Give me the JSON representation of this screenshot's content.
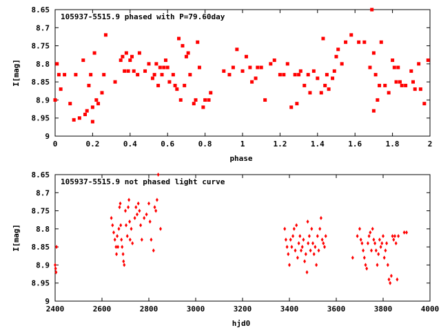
{
  "chart_data": [
    {
      "type": "scatter",
      "title": "105937-5515.9 phased with P=79.60day",
      "xlabel": "phase",
      "ylabel": "I[mag]",
      "xlim": [
        0,
        2
      ],
      "ylim": [
        8.65,
        9
      ],
      "y_inverted": true,
      "x_ticks": [
        "0",
        "0.2",
        "0.4",
        "0.6",
        "0.8",
        "1",
        "1.2",
        "1.4",
        "1.6",
        "1.8",
        "2"
      ],
      "y_ticks": [
        "8.65",
        "8.7",
        "8.75",
        "8.8",
        "8.85",
        "8.9",
        "8.95",
        "9"
      ],
      "marker_color": "#ff0000",
      "marker": "filled-square",
      "points": [
        [
          0.0,
          8.9
        ],
        [
          0.01,
          8.8
        ],
        [
          0.02,
          8.83
        ],
        [
          0.03,
          8.87
        ],
        [
          0.05,
          8.83
        ],
        [
          0.08,
          8.91
        ],
        [
          0.1,
          8.955
        ],
        [
          0.11,
          8.83
        ],
        [
          0.13,
          8.95
        ],
        [
          0.15,
          8.79
        ],
        [
          0.16,
          8.94
        ],
        [
          0.17,
          8.93
        ],
        [
          0.18,
          8.86
        ],
        [
          0.19,
          8.83
        ],
        [
          0.2,
          8.92
        ],
        [
          0.2,
          8.96
        ],
        [
          0.21,
          8.77
        ],
        [
          0.22,
          8.9
        ],
        [
          0.23,
          8.91
        ],
        [
          0.25,
          8.88
        ],
        [
          0.26,
          8.83
        ],
        [
          0.27,
          8.72
        ],
        [
          0.32,
          8.85
        ],
        [
          0.35,
          8.79
        ],
        [
          0.36,
          8.78
        ],
        [
          0.37,
          8.82
        ],
        [
          0.38,
          8.77
        ],
        [
          0.39,
          8.82
        ],
        [
          0.4,
          8.79
        ],
        [
          0.41,
          8.78
        ],
        [
          0.42,
          8.82
        ],
        [
          0.44,
          8.83
        ],
        [
          0.45,
          8.77
        ],
        [
          0.48,
          8.82
        ],
        [
          0.5,
          8.8
        ],
        [
          0.52,
          8.84
        ],
        [
          0.53,
          8.83
        ],
        [
          0.54,
          8.8
        ],
        [
          0.55,
          8.86
        ],
        [
          0.56,
          8.81
        ],
        [
          0.57,
          8.83
        ],
        [
          0.58,
          8.81
        ],
        [
          0.59,
          8.79
        ],
        [
          0.6,
          8.81
        ],
        [
          0.61,
          8.85
        ],
        [
          0.63,
          8.83
        ],
        [
          0.64,
          8.86
        ],
        [
          0.65,
          8.87
        ],
        [
          0.66,
          8.73
        ],
        [
          0.67,
          8.9
        ],
        [
          0.68,
          8.75
        ],
        [
          0.69,
          8.86
        ],
        [
          0.7,
          8.78
        ],
        [
          0.71,
          8.77
        ],
        [
          0.72,
          8.83
        ],
        [
          0.74,
          8.91
        ],
        [
          0.75,
          8.9
        ],
        [
          0.76,
          8.74
        ],
        [
          0.77,
          8.81
        ],
        [
          0.79,
          8.92
        ],
        [
          0.8,
          8.9
        ],
        [
          0.82,
          8.9
        ],
        [
          0.83,
          8.88
        ],
        [
          0.9,
          8.82
        ],
        [
          0.93,
          8.83
        ],
        [
          0.95,
          8.81
        ],
        [
          0.97,
          8.76
        ],
        [
          1.0,
          8.82
        ],
        [
          1.02,
          8.78
        ],
        [
          1.04,
          8.81
        ],
        [
          1.05,
          8.85
        ],
        [
          1.07,
          8.84
        ],
        [
          1.08,
          8.81
        ],
        [
          1.1,
          8.81
        ],
        [
          1.12,
          8.9
        ],
        [
          1.15,
          8.8
        ],
        [
          1.17,
          8.79
        ],
        [
          1.2,
          8.83
        ],
        [
          1.22,
          8.83
        ],
        [
          1.24,
          8.8
        ],
        [
          1.26,
          8.92
        ],
        [
          1.28,
          8.83
        ],
        [
          1.29,
          8.91
        ],
        [
          1.3,
          8.83
        ],
        [
          1.31,
          8.82
        ],
        [
          1.33,
          8.86
        ],
        [
          1.35,
          8.83
        ],
        [
          1.36,
          8.88
        ],
        [
          1.38,
          8.82
        ],
        [
          1.4,
          8.84
        ],
        [
          1.42,
          8.88
        ],
        [
          1.43,
          8.73
        ],
        [
          1.44,
          8.86
        ],
        [
          1.45,
          8.83
        ],
        [
          1.46,
          8.87
        ],
        [
          1.48,
          8.84
        ],
        [
          1.49,
          8.82
        ],
        [
          1.5,
          8.78
        ],
        [
          1.51,
          8.76
        ],
        [
          1.53,
          8.8
        ],
        [
          1.55,
          8.74
        ],
        [
          1.58,
          8.72
        ],
        [
          1.62,
          8.74
        ],
        [
          1.65,
          8.74
        ],
        [
          1.68,
          8.81
        ],
        [
          1.69,
          8.65
        ],
        [
          1.7,
          8.77
        ],
        [
          1.7,
          8.93
        ],
        [
          1.71,
          8.83
        ],
        [
          1.72,
          8.9
        ],
        [
          1.73,
          8.86
        ],
        [
          1.74,
          8.74
        ],
        [
          1.76,
          8.86
        ],
        [
          1.78,
          8.88
        ],
        [
          1.8,
          8.79
        ],
        [
          1.81,
          8.81
        ],
        [
          1.82,
          8.85
        ],
        [
          1.83,
          8.81
        ],
        [
          1.84,
          8.85
        ],
        [
          1.85,
          8.86
        ],
        [
          1.87,
          8.86
        ],
        [
          1.9,
          8.82
        ],
        [
          1.91,
          8.85
        ],
        [
          1.92,
          8.87
        ],
        [
          1.94,
          8.8
        ],
        [
          1.95,
          8.87
        ],
        [
          1.97,
          8.91
        ],
        [
          1.99,
          8.79
        ]
      ]
    },
    {
      "type": "scatter",
      "title": "105937-5515.9 not phased light curve",
      "xlabel": "hjd0",
      "ylabel": "I[mag]",
      "xlim": [
        2400,
        4000
      ],
      "ylim": [
        8.65,
        9
      ],
      "y_inverted": true,
      "x_ticks": [
        "2400",
        "2600",
        "2800",
        "3000",
        "3200",
        "3400",
        "3600",
        "3800",
        "4000"
      ],
      "y_ticks": [
        "8.65",
        "8.7",
        "8.75",
        "8.8",
        "8.85",
        "8.9",
        "8.95",
        "9"
      ],
      "marker_color": "#ff0000",
      "marker": "filled-diamond",
      "points": [
        [
          2400,
          8.9
        ],
        [
          2402,
          8.91
        ],
        [
          2404,
          8.92
        ],
        [
          2406,
          8.85
        ],
        [
          2640,
          8.77
        ],
        [
          2645,
          8.79
        ],
        [
          2650,
          8.81
        ],
        [
          2655,
          8.83
        ],
        [
          2660,
          8.85
        ],
        [
          2662,
          8.87
        ],
        [
          2665,
          8.82
        ],
        [
          2668,
          8.85
        ],
        [
          2672,
          8.8
        ],
        [
          2675,
          8.74
        ],
        [
          2678,
          8.73
        ],
        [
          2680,
          8.79
        ],
        [
          2683,
          8.83
        ],
        [
          2686,
          8.85
        ],
        [
          2690,
          8.87
        ],
        [
          2692,
          8.89
        ],
        [
          2695,
          8.9
        ],
        [
          2700,
          8.75
        ],
        [
          2703,
          8.79
        ],
        [
          2708,
          8.82
        ],
        [
          2712,
          8.74
        ],
        [
          2715,
          8.72
        ],
        [
          2718,
          8.78
        ],
        [
          2720,
          8.83
        ],
        [
          2725,
          8.8
        ],
        [
          2730,
          8.84
        ],
        [
          2740,
          8.77
        ],
        [
          2745,
          8.74
        ],
        [
          2750,
          8.76
        ],
        [
          2755,
          8.73
        ],
        [
          2760,
          8.75
        ],
        [
          2765,
          8.79
        ],
        [
          2770,
          8.83
        ],
        [
          2780,
          8.77
        ],
        [
          2790,
          8.76
        ],
        [
          2800,
          8.73
        ],
        [
          2805,
          8.78
        ],
        [
          2810,
          8.83
        ],
        [
          2820,
          8.86
        ],
        [
          2825,
          8.74
        ],
        [
          2830,
          8.75
        ],
        [
          2835,
          8.72
        ],
        [
          2840,
          8.65
        ],
        [
          2850,
          8.8
        ],
        [
          3380,
          8.8
        ],
        [
          3385,
          8.83
        ],
        [
          3390,
          8.85
        ],
        [
          3395,
          8.87
        ],
        [
          3400,
          8.9
        ],
        [
          3405,
          8.83
        ],
        [
          3410,
          8.85
        ],
        [
          3415,
          8.82
        ],
        [
          3420,
          8.8
        ],
        [
          3425,
          8.86
        ],
        [
          3430,
          8.79
        ],
        [
          3435,
          8.88
        ],
        [
          3440,
          8.84
        ],
        [
          3445,
          8.82
        ],
        [
          3450,
          8.86
        ],
        [
          3455,
          8.85
        ],
        [
          3460,
          8.83
        ],
        [
          3465,
          8.89
        ],
        [
          3470,
          8.87
        ],
        [
          3475,
          8.92
        ],
        [
          3478,
          8.78
        ],
        [
          3480,
          8.84
        ],
        [
          3485,
          8.82
        ],
        [
          3490,
          8.86
        ],
        [
          3495,
          8.8
        ],
        [
          3500,
          8.84
        ],
        [
          3505,
          8.87
        ],
        [
          3510,
          8.85
        ],
        [
          3515,
          8.9
        ],
        [
          3520,
          8.82
        ],
        [
          3525,
          8.86
        ],
        [
          3530,
          8.8
        ],
        [
          3535,
          8.77
        ],
        [
          3540,
          8.83
        ],
        [
          3545,
          8.84
        ],
        [
          3550,
          8.85
        ],
        [
          3555,
          8.82
        ],
        [
          3670,
          8.88
        ],
        [
          3690,
          8.82
        ],
        [
          3700,
          8.8
        ],
        [
          3705,
          8.83
        ],
        [
          3710,
          8.84
        ],
        [
          3715,
          8.86
        ],
        [
          3720,
          8.88
        ],
        [
          3725,
          8.9
        ],
        [
          3730,
          8.91
        ],
        [
          3735,
          8.84
        ],
        [
          3740,
          8.82
        ],
        [
          3745,
          8.81
        ],
        [
          3750,
          8.86
        ],
        [
          3755,
          8.8
        ],
        [
          3760,
          8.83
        ],
        [
          3765,
          8.84
        ],
        [
          3770,
          8.86
        ],
        [
          3775,
          8.9
        ],
        [
          3780,
          8.87
        ],
        [
          3785,
          8.83
        ],
        [
          3790,
          8.85
        ],
        [
          3795,
          8.84
        ],
        [
          3800,
          8.82
        ],
        [
          3805,
          8.88
        ],
        [
          3810,
          8.86
        ],
        [
          3815,
          8.84
        ],
        [
          3820,
          8.9
        ],
        [
          3825,
          8.94
        ],
        [
          3830,
          8.95
        ],
        [
          3835,
          8.93
        ],
        [
          3840,
          8.82
        ],
        [
          3845,
          8.83
        ],
        [
          3850,
          8.82
        ],
        [
          3855,
          8.84
        ],
        [
          3860,
          8.94
        ],
        [
          3865,
          8.82
        ],
        [
          3890,
          8.81
        ],
        [
          3900,
          8.81
        ]
      ]
    }
  ]
}
